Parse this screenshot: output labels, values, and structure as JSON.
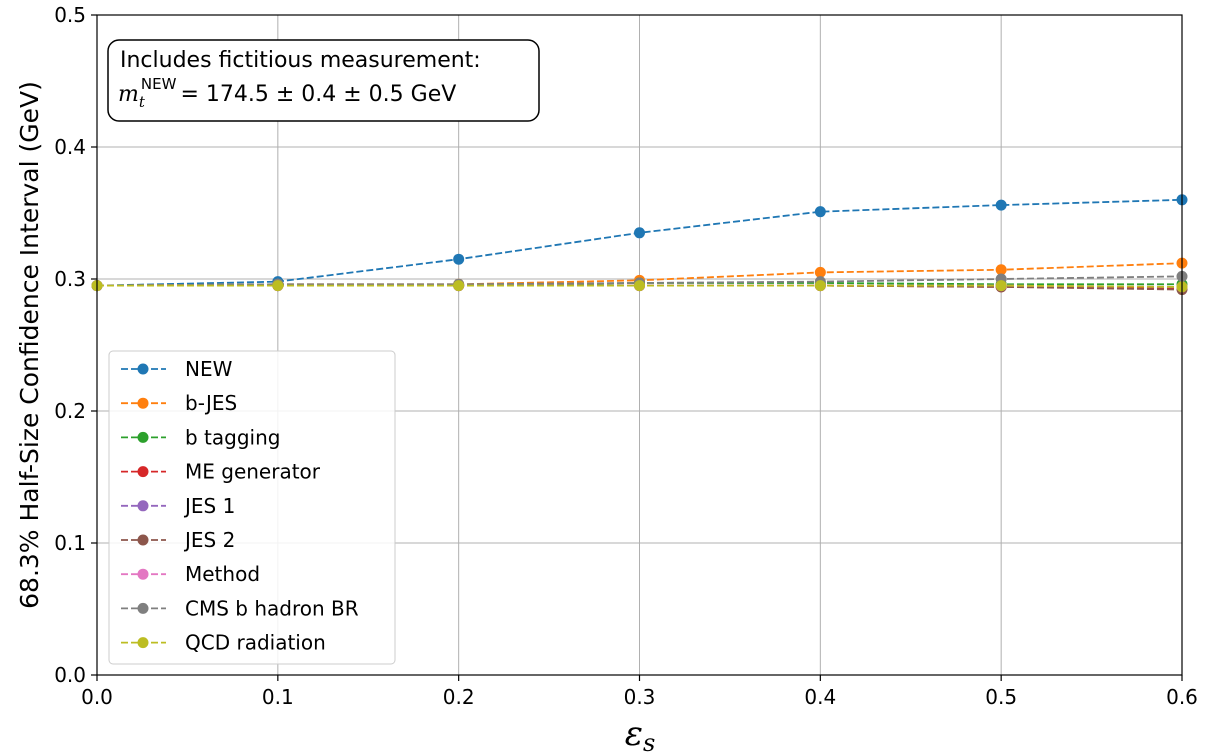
{
  "chart_data": {
    "type": "line",
    "ylabel": "68.3% Half-Size Confidence Interval (GeV)",
    "xlabel": "ε",
    "xlabel_sub": "s",
    "xlim": [
      0.0,
      0.6
    ],
    "ylim": [
      0.0,
      0.5
    ],
    "x_ticks": [
      "0.0",
      "0.1",
      "0.2",
      "0.3",
      "0.4",
      "0.5",
      "0.6"
    ],
    "y_ticks": [
      "0.0",
      "0.1",
      "0.2",
      "0.3",
      "0.4",
      "0.5"
    ],
    "grid": true,
    "legend_position": "lower-left",
    "annotation": {
      "line1": "Includes fictitious measurement:",
      "symbol": "m",
      "subscript": "t",
      "superscript": "NEW",
      "value_text": "= 174.5 ± 0.4 ± 0.5 GeV"
    },
    "x": [
      0.0,
      0.1,
      0.2,
      0.3,
      0.4,
      0.5,
      0.6
    ],
    "series": [
      {
        "name": "NEW",
        "color": "#1f77b4",
        "values": [
          0.295,
          0.298,
          0.315,
          0.335,
          0.351,
          0.356,
          0.36
        ]
      },
      {
        "name": "b-JES",
        "color": "#ff7f0e",
        "values": [
          0.295,
          0.296,
          0.296,
          0.299,
          0.305,
          0.307,
          0.312
        ]
      },
      {
        "name": "b tagging",
        "color": "#2ca02c",
        "values": [
          0.295,
          0.295,
          0.295,
          0.297,
          0.297,
          0.296,
          0.296
        ]
      },
      {
        "name": "ME generator",
        "color": "#d62728",
        "values": [
          0.295,
          0.295,
          0.295,
          0.295,
          0.295,
          0.294,
          0.293
        ]
      },
      {
        "name": "JES 1",
        "color": "#9467bd",
        "values": [
          0.295,
          0.295,
          0.295,
          0.295,
          0.295,
          0.295,
          0.294
        ]
      },
      {
        "name": "JES 2",
        "color": "#8c564b",
        "values": [
          0.295,
          0.295,
          0.295,
          0.295,
          0.295,
          0.294,
          0.292
        ]
      },
      {
        "name": "Method",
        "color": "#e377c2",
        "values": [
          0.295,
          0.295,
          0.295,
          0.295,
          0.295,
          0.295,
          0.294
        ]
      },
      {
        "name": "CMS b hadron BR",
        "color": "#7f7f7f",
        "values": [
          0.295,
          0.296,
          0.296,
          0.297,
          0.298,
          0.3,
          0.302
        ]
      },
      {
        "name": "QCD radiation",
        "color": "#bcbd22",
        "values": [
          0.295,
          0.295,
          0.295,
          0.295,
          0.295,
          0.295,
          0.294
        ]
      }
    ]
  }
}
